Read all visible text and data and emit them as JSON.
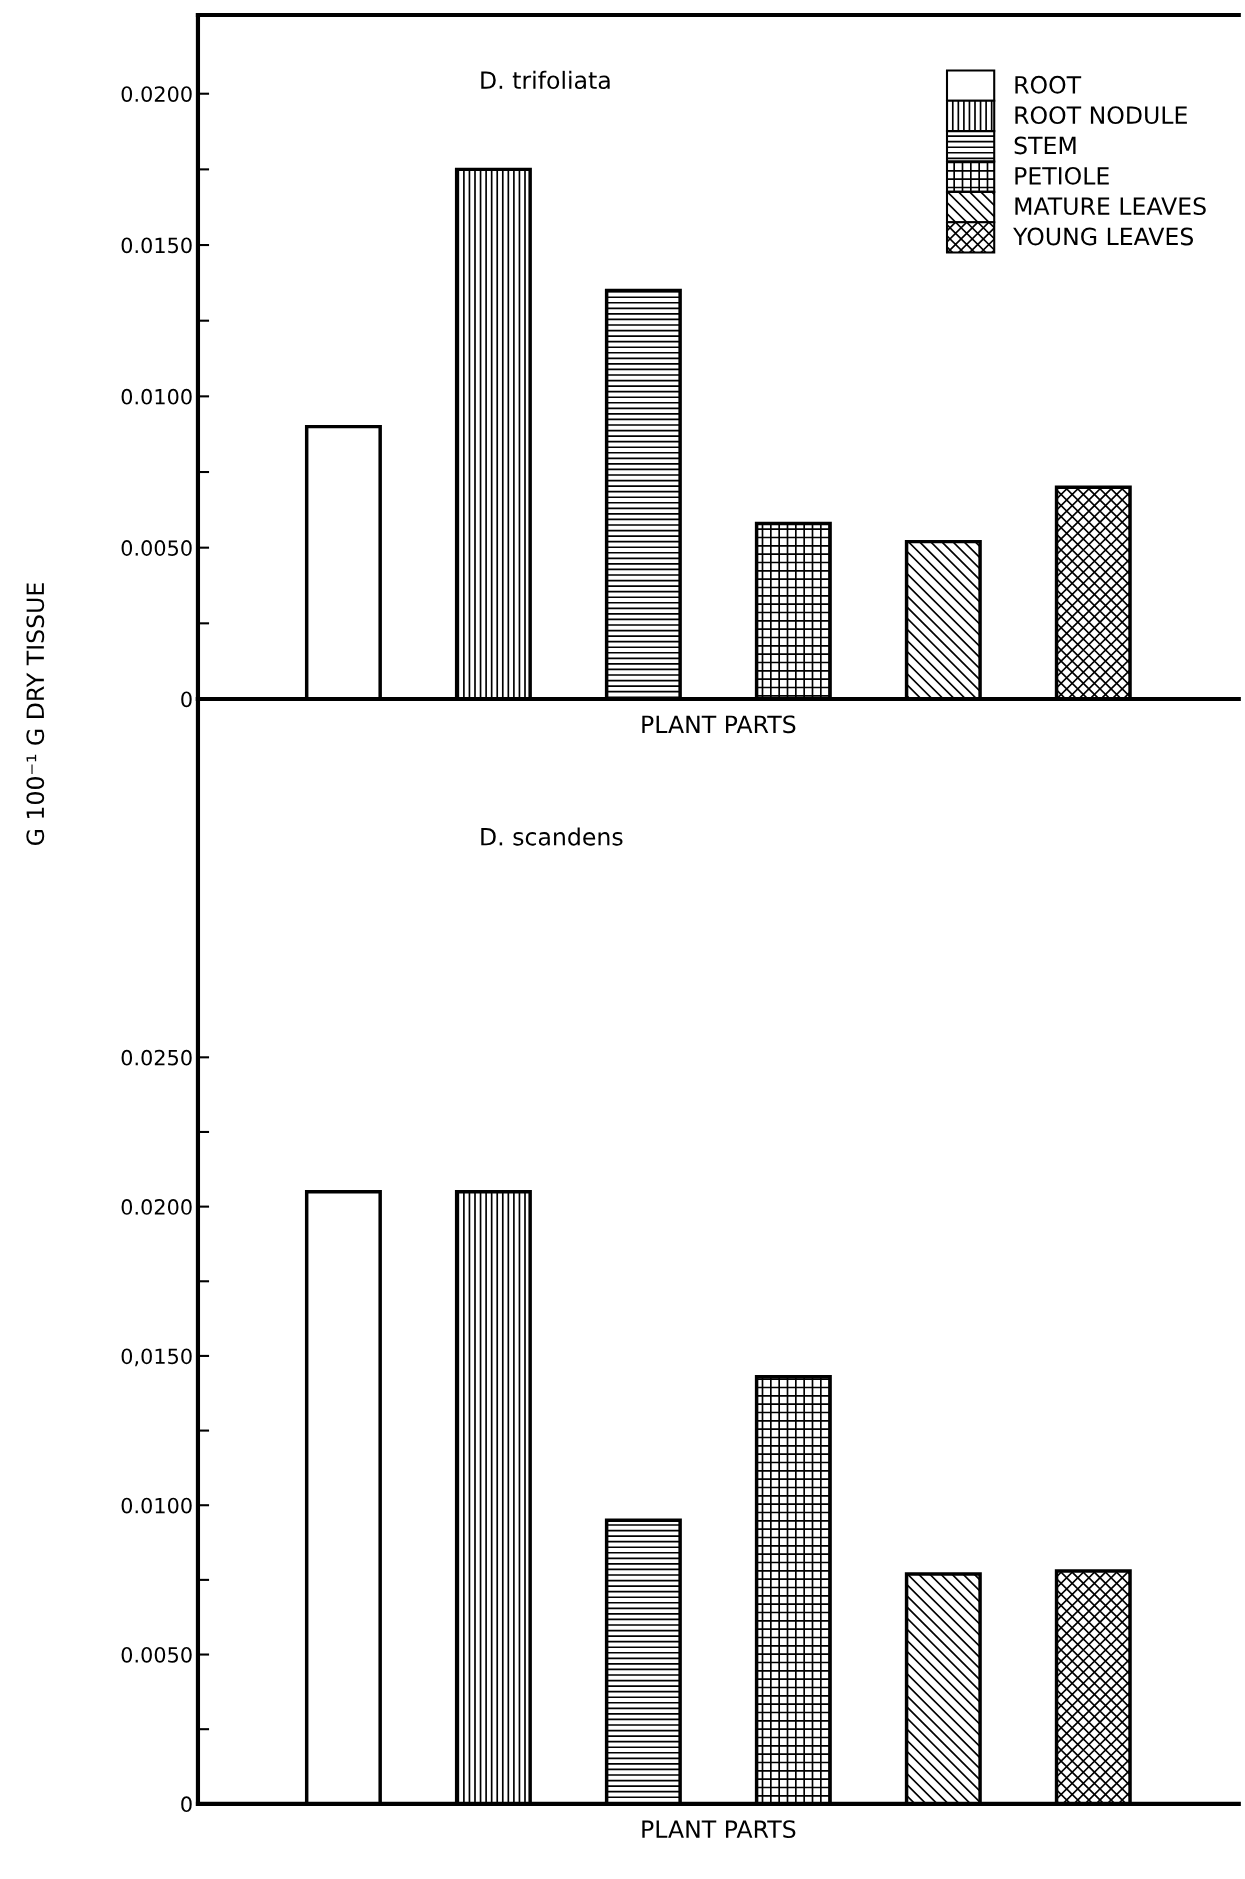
{
  "chart_data": [
    {
      "type": "bar",
      "title": "D. trifoliata",
      "xlabel": "PLANT PARTS",
      "ylabel": "G 100⁻¹ G DRY TISSUE",
      "categories": [
        null,
        null,
        null,
        null,
        null,
        null
      ],
      "series": [
        {
          "name": "ROOT",
          "color": "#ffffff",
          "values": [
            0.009,
            null,
            null,
            null,
            null,
            null
          ]
        },
        {
          "name": "ROOT NODULE",
          "color": "#000000",
          "values": [
            null,
            0.0175,
            null,
            null,
            null,
            null
          ]
        },
        {
          "name": "STEM",
          "color": "#000000",
          "values": [
            null,
            null,
            0.0135,
            null,
            null,
            null
          ]
        },
        {
          "name": "PETIOLE",
          "color": "#000000",
          "values": [
            null,
            null,
            null,
            0.0058,
            null,
            null
          ]
        },
        {
          "name": "MATURE LEAVES",
          "color": "#000000",
          "values": [
            null,
            null,
            null,
            null,
            0.0052,
            null
          ]
        },
        {
          "name": "YOUNG LEAVES",
          "color": "#000000",
          "values": [
            null,
            null,
            null,
            null,
            null,
            0.007
          ]
        }
      ],
      "ylim": [
        0,
        0.0226
      ],
      "yticks": [
        {
          "value": 0,
          "label": "0"
        },
        {
          "value": 0.0025,
          "label": null
        },
        {
          "value": 0.005,
          "label": "0.0050"
        },
        {
          "value": 0.0075,
          "label": null
        },
        {
          "value": 0.01,
          "label": "0.0100"
        },
        {
          "value": 0.0125,
          "label": null
        },
        {
          "value": 0.015,
          "label": "0.0150"
        },
        {
          "value": 0.0175,
          "label": null
        },
        {
          "value": 0.02,
          "label": "0.0200"
        }
      ],
      "legend": "top right",
      "grid": false
    },
    {
      "type": "bar",
      "title": "D. scandens",
      "xlabel": "PLANT PARTS",
      "categories": [
        null,
        null,
        null,
        null,
        null,
        null
      ],
      "series": [
        {
          "color": "#ffffff",
          "values": [
            0.0205,
            null,
            null,
            null,
            null,
            null
          ]
        },
        {
          "color": "#000000",
          "values": [
            null,
            0.0205,
            null,
            null,
            null,
            null
          ]
        },
        {
          "color": "#000000",
          "values": [
            null,
            null,
            0.0095,
            null,
            null,
            null
          ]
        },
        {
          "color": "#000000",
          "values": [
            null,
            null,
            null,
            0.0143,
            null,
            null
          ]
        },
        {
          "color": "#000000",
          "values": [
            null,
            null,
            null,
            null,
            0.0077,
            null
          ]
        },
        {
          "color": "#000000",
          "values": [
            null,
            null,
            null,
            null,
            null,
            0.0078
          ]
        }
      ],
      "ylim": [
        0,
        0.037
      ],
      "yticks": [
        {
          "value": 0,
          "label": "0"
        },
        {
          "value": 0.0025,
          "label": null
        },
        {
          "value": 0.005,
          "label": "0.0050"
        },
        {
          "value": 0.0075,
          "label": null
        },
        {
          "value": 0.01,
          "label": "0.0100"
        },
        {
          "value": 0.0125,
          "label": null
        },
        {
          "value": 0.015,
          "label": "0,0150"
        },
        {
          "value": 0.0175,
          "label": null
        },
        {
          "value": 0.02,
          "label": "0.0200"
        },
        {
          "value": 0.0225,
          "label": null
        },
        {
          "value": 0.025,
          "label": "0.0250"
        }
      ],
      "legend": false,
      "grid": false
    }
  ]
}
